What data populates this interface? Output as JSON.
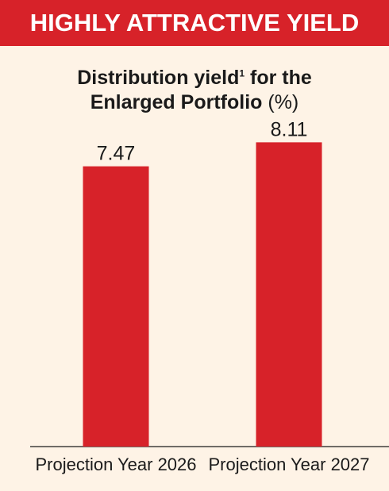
{
  "banner": {
    "text": "HIGHLY ATTRACTIVE YIELD"
  },
  "colors": {
    "accent": "#d72229",
    "background": "#fef3e6",
    "text": "#1a1a1a"
  },
  "chart_data": {
    "type": "bar",
    "title_part1": "Distribution yield",
    "title_superscript": "1",
    "title_part2": " for the",
    "title_line2": "Enlarged Portfolio",
    "title_unit": " (%)",
    "categories": [
      "Projection Year 2026",
      "Projection Year 2027"
    ],
    "values": [
      7.47,
      8.11
    ],
    "value_labels": [
      "7.47",
      "8.11"
    ],
    "ylim": [
      0,
      10.3
    ],
    "grid": false,
    "legend": "none"
  }
}
